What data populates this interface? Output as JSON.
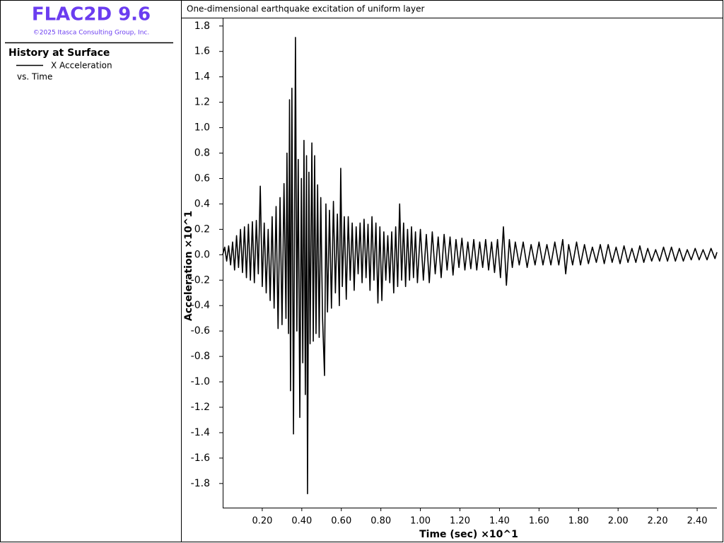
{
  "app": {
    "name": "FLAC2D 9.6",
    "copyright": "©2025 Itasca Consulting Group, Inc."
  },
  "chart_data": {
    "type": "line",
    "title": "One-dimensional earthquake excitation of uniform layer",
    "legend_title": "History at Surface",
    "legend_subtitle": "vs. Time",
    "x_label": "Time (sec) ×10^1",
    "y_label": "Acceleration ×10^1",
    "xlim": [
      0,
      2.5
    ],
    "ylim": [
      -1.99,
      1.86
    ],
    "xticks": [
      {
        "value": 0.2,
        "label": "0.20"
      },
      {
        "value": 0.4,
        "label": "0.40"
      },
      {
        "value": 0.6,
        "label": "0.60"
      },
      {
        "value": 0.8,
        "label": "0.80"
      },
      {
        "value": 1.0,
        "label": "1.00"
      },
      {
        "value": 1.2,
        "label": "1.20"
      },
      {
        "value": 1.4,
        "label": "1.40"
      },
      {
        "value": 1.6,
        "label": "1.60"
      },
      {
        "value": 1.8,
        "label": "1.80"
      },
      {
        "value": 2.0,
        "label": "2.00"
      },
      {
        "value": 2.2,
        "label": "2.20"
      },
      {
        "value": 2.4,
        "label": "2.40"
      }
    ],
    "yticks": [
      1.8,
      1.6,
      1.4,
      1.2,
      {
        "value": 1.0,
        "label": "1.0"
      },
      0.8,
      0.6,
      0.4,
      0.2,
      {
        "value": 0,
        "label": "0.0"
      },
      -0.2,
      -0.4,
      -0.6,
      -0.8,
      {
        "value": -1.0,
        "label": "-1.0"
      },
      -1.2,
      -1.4,
      -1.6,
      -1.8
    ],
    "x": [
      0.0,
      0.01,
      0.02,
      0.03,
      0.04,
      0.05,
      0.06,
      0.07,
      0.08,
      0.09,
      0.1,
      0.11,
      0.12,
      0.13,
      0.14,
      0.15,
      0.16,
      0.17,
      0.18,
      0.19,
      0.2,
      0.21,
      0.22,
      0.23,
      0.24,
      0.25,
      0.26,
      0.27,
      0.28,
      0.29,
      0.3,
      0.31,
      0.32,
      0.325,
      0.333,
      0.338,
      0.343,
      0.35,
      0.358,
      0.368,
      0.375,
      0.382,
      0.39,
      0.398,
      0.405,
      0.411,
      0.418,
      0.424,
      0.429,
      0.436,
      0.442,
      0.451,
      0.458,
      0.465,
      0.472,
      0.48,
      0.488,
      0.496,
      0.505,
      0.515,
      0.522,
      0.53,
      0.54,
      0.55,
      0.56,
      0.57,
      0.58,
      0.59,
      0.597,
      0.605,
      0.615,
      0.625,
      0.635,
      0.645,
      0.655,
      0.665,
      0.675,
      0.685,
      0.695,
      0.705,
      0.715,
      0.725,
      0.735,
      0.745,
      0.755,
      0.765,
      0.775,
      0.785,
      0.795,
      0.805,
      0.815,
      0.825,
      0.835,
      0.845,
      0.855,
      0.865,
      0.875,
      0.885,
      0.895,
      0.905,
      0.915,
      0.925,
      0.935,
      0.945,
      0.955,
      0.965,
      0.975,
      0.985,
      1.0,
      1.015,
      1.03,
      1.045,
      1.06,
      1.075,
      1.09,
      1.105,
      1.12,
      1.135,
      1.15,
      1.165,
      1.18,
      1.195,
      1.21,
      1.225,
      1.24,
      1.255,
      1.27,
      1.285,
      1.3,
      1.315,
      1.33,
      1.345,
      1.36,
      1.375,
      1.39,
      1.405,
      1.42,
      1.435,
      1.45,
      1.465,
      1.48,
      1.5,
      1.52,
      1.54,
      1.56,
      1.58,
      1.6,
      1.62,
      1.64,
      1.66,
      1.68,
      1.7,
      1.72,
      1.735,
      1.75,
      1.77,
      1.79,
      1.81,
      1.83,
      1.85,
      1.87,
      1.89,
      1.91,
      1.93,
      1.95,
      1.97,
      1.99,
      2.01,
      2.03,
      2.05,
      2.07,
      2.09,
      2.11,
      2.13,
      2.15,
      2.17,
      2.19,
      2.21,
      2.23,
      2.25,
      2.27,
      2.29,
      2.31,
      2.33,
      2.35,
      2.37,
      2.39,
      2.41,
      2.43,
      2.45,
      2.47,
      2.49,
      2.5
    ],
    "series": [
      {
        "name": "X Acceleration",
        "color": "#000000",
        "values": [
          0.0,
          0.06,
          -0.05,
          0.07,
          -0.08,
          0.1,
          -0.12,
          0.15,
          -0.1,
          0.2,
          -0.14,
          0.22,
          -0.18,
          0.24,
          -0.2,
          0.26,
          -0.22,
          0.27,
          -0.15,
          0.54,
          -0.25,
          0.25,
          -0.3,
          0.2,
          -0.36,
          0.3,
          -0.42,
          0.38,
          -0.58,
          0.45,
          -0.55,
          0.56,
          -0.5,
          0.8,
          -0.62,
          1.22,
          -1.07,
          1.31,
          -1.41,
          1.71,
          -0.6,
          0.75,
          -1.28,
          0.6,
          -0.85,
          0.9,
          -1.1,
          0.78,
          -1.88,
          0.65,
          -0.7,
          0.88,
          -0.68,
          0.78,
          -0.62,
          0.55,
          -0.65,
          0.45,
          -0.5,
          -0.95,
          0.4,
          -0.45,
          0.35,
          -0.42,
          0.42,
          -0.3,
          0.32,
          -0.4,
          0.68,
          -0.25,
          0.3,
          -0.35,
          0.3,
          -0.2,
          0.25,
          -0.28,
          0.22,
          -0.15,
          0.25,
          -0.22,
          0.28,
          -0.18,
          0.24,
          -0.28,
          0.3,
          -0.2,
          0.25,
          -0.38,
          0.22,
          -0.36,
          0.18,
          -0.2,
          0.15,
          -0.22,
          0.18,
          -0.3,
          0.22,
          -0.25,
          0.4,
          -0.2,
          0.25,
          -0.25,
          0.2,
          -0.2,
          0.22,
          -0.18,
          0.18,
          -0.22,
          0.2,
          -0.2,
          0.16,
          -0.22,
          0.18,
          -0.15,
          0.14,
          -0.18,
          0.16,
          -0.12,
          0.14,
          -0.16,
          0.12,
          -0.1,
          0.13,
          -0.12,
          0.1,
          -0.11,
          0.12,
          -0.12,
          0.1,
          -0.1,
          0.12,
          -0.12,
          0.1,
          -0.14,
          0.12,
          -0.18,
          0.22,
          -0.24,
          0.12,
          -0.1,
          0.1,
          -0.08,
          0.1,
          -0.1,
          0.08,
          -0.08,
          0.1,
          -0.08,
          0.08,
          -0.08,
          0.1,
          -0.08,
          0.12,
          -0.15,
          0.08,
          -0.08,
          0.1,
          -0.08,
          0.08,
          -0.07,
          0.06,
          -0.06,
          0.08,
          -0.07,
          0.08,
          -0.06,
          0.06,
          -0.07,
          0.07,
          -0.06,
          0.05,
          -0.06,
          0.07,
          -0.06,
          0.05,
          -0.05,
          0.04,
          -0.05,
          0.06,
          -0.05,
          0.06,
          -0.05,
          0.05,
          -0.05,
          0.04,
          -0.04,
          0.05,
          -0.04,
          0.04,
          -0.04,
          0.05,
          -0.03,
          0.02
        ]
      }
    ]
  }
}
